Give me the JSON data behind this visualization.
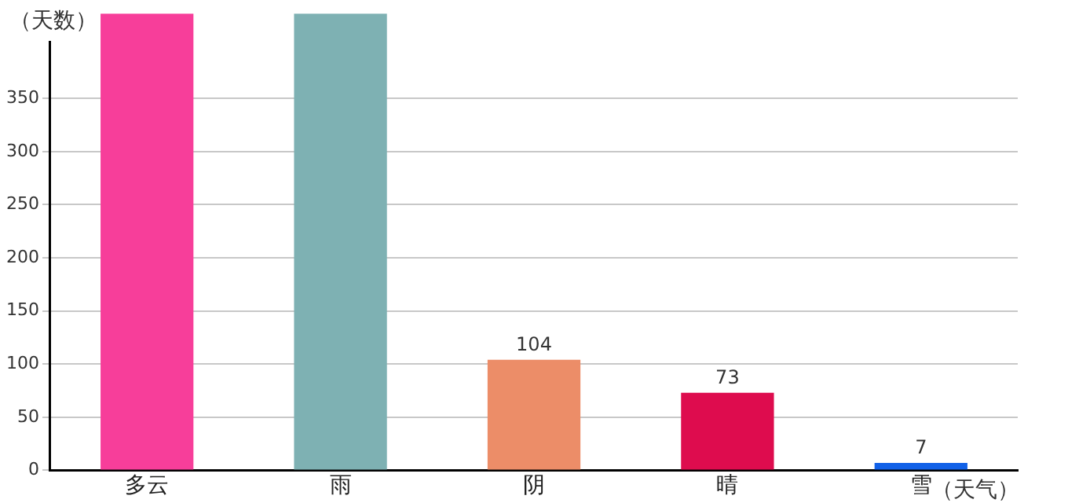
{
  "chart_data": {
    "type": "bar",
    "xlabel": "（天气）",
    "ylabel": "（天数）",
    "categories": [
      "多云",
      "雨",
      "阴",
      "晴",
      "雪"
    ],
    "values": [
      430,
      430,
      104,
      73,
      7
    ],
    "value_labels": [
      null,
      null,
      "104",
      "73",
      "7"
    ],
    "colors": [
      "#f73e9a",
      "#7eb1b3",
      "#ec8d68",
      "#de0c4e",
      "#1161e8"
    ],
    "ylim": [
      0,
      430
    ],
    "yticks": [
      0,
      50,
      100,
      150,
      200,
      250,
      300,
      350
    ],
    "grid": "y",
    "legend": false
  }
}
